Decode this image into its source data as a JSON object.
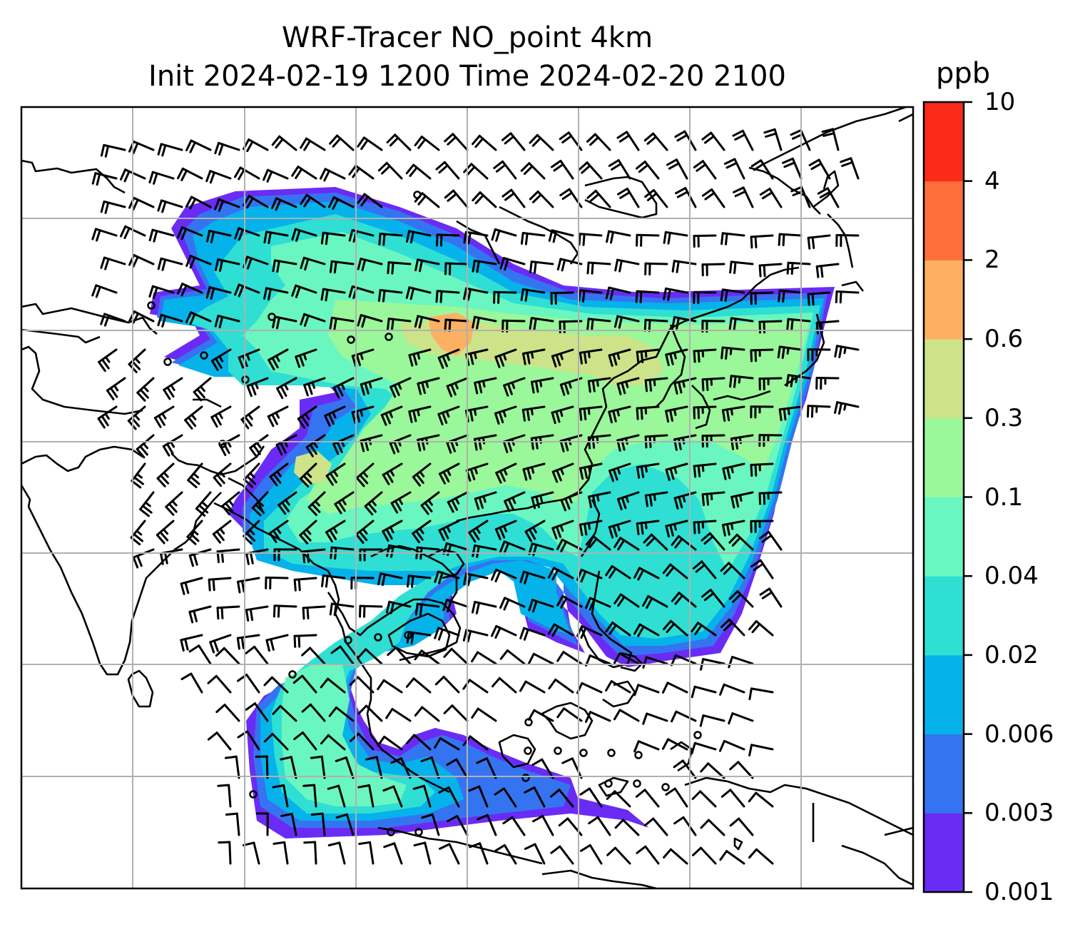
{
  "title": {
    "line1": "WRF-Tracer NO_point 4km",
    "line2": "Init 2024-02-19 1200 Time 2024-02-20 2100"
  },
  "colorbar": {
    "unit": "ppb",
    "levels": [
      "0.001",
      "0.003",
      "0.006",
      "0.02",
      "0.04",
      "0.1",
      "0.3",
      "0.6",
      "2",
      "4",
      "10"
    ],
    "colors": [
      "#6a2cf5",
      "#3574f0",
      "#06b2ea",
      "#2fdfd3",
      "#6af6c0",
      "#9af79a",
      "#cde38a",
      "#fdb062",
      "#fd6e3a",
      "#fc2a18"
    ]
  },
  "map": {
    "gridlines": true,
    "frame_color": "#000000",
    "gridline_color": "#b0b0b0",
    "coastline_color": "#000000",
    "wind_barb_color": "#000000"
  }
}
